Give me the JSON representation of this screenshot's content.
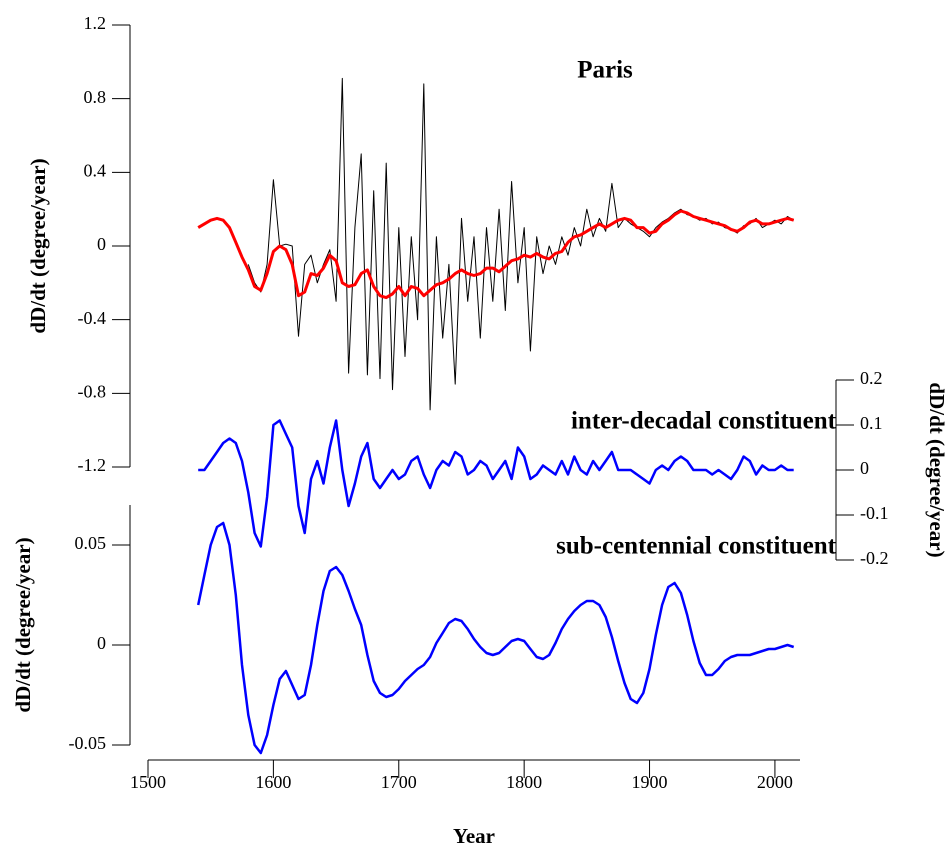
{
  "chart_data": [
    {
      "type": "line",
      "title": "Paris",
      "ylabel": "dD/dt (degree/year)",
      "xlim": [
        1500,
        2020
      ],
      "ylim": [
        -1.2,
        1.2
      ],
      "yticks": [
        -1.2,
        -0.8,
        -0.4,
        0,
        0.4,
        0.8,
        1.2
      ],
      "x": [
        1540,
        1545,
        1550,
        1555,
        1560,
        1565,
        1570,
        1575,
        1580,
        1585,
        1590,
        1595,
        1600,
        1605,
        1610,
        1615,
        1620,
        1625,
        1630,
        1635,
        1640,
        1645,
        1650,
        1655,
        1660,
        1665,
        1670,
        1675,
        1680,
        1685,
        1690,
        1695,
        1700,
        1705,
        1710,
        1715,
        1720,
        1725,
        1730,
        1735,
        1740,
        1745,
        1750,
        1755,
        1760,
        1765,
        1770,
        1775,
        1780,
        1785,
        1790,
        1795,
        1800,
        1805,
        1810,
        1815,
        1820,
        1825,
        1830,
        1835,
        1840,
        1845,
        1850,
        1855,
        1860,
        1865,
        1870,
        1875,
        1880,
        1885,
        1890,
        1895,
        1900,
        1905,
        1910,
        1915,
        1920,
        1925,
        1930,
        1935,
        1940,
        1945,
        1950,
        1955,
        1960,
        1965,
        1970,
        1975,
        1980,
        1985,
        1990,
        1995,
        2000,
        2005,
        2010,
        2015
      ],
      "series": [
        {
          "color": "#000000",
          "values": [
            null,
            null,
            null,
            null,
            null,
            null,
            null,
            null,
            -0.1,
            -0.2,
            -0.25,
            -0.1,
            0.36,
            0.0,
            0.01,
            0.0,
            -0.49,
            -0.1,
            -0.05,
            -0.2,
            -0.1,
            -0.02,
            -0.3,
            0.91,
            -0.69,
            0.1,
            0.5,
            -0.7,
            0.3,
            -0.72,
            0.45,
            -0.78,
            0.1,
            -0.6,
            0.05,
            -0.4,
            0.88,
            -0.89,
            0.05,
            -0.5,
            -0.1,
            -0.75,
            0.15,
            -0.3,
            0.05,
            -0.5,
            0.1,
            -0.3,
            0.2,
            -0.35,
            0.35,
            -0.2,
            0.1,
            -0.57,
            0.05,
            -0.15,
            0.0,
            -0.1,
            0.05,
            -0.05,
            0.1,
            0.0,
            0.2,
            0.05,
            0.15,
            0.08,
            0.34,
            0.1,
            0.15,
            0.12,
            0.1,
            0.08,
            0.05,
            0.1,
            0.13,
            0.15,
            0.18,
            0.2,
            0.17,
            0.16,
            0.14,
            0.15,
            0.12,
            0.13,
            0.1,
            0.09,
            0.07,
            0.11,
            0.12,
            0.15,
            0.1,
            0.12,
            0.14,
            0.12,
            0.16,
            0.14
          ]
        },
        {
          "color": "#ff0000",
          "values": [
            0.1,
            0.12,
            0.14,
            0.15,
            0.14,
            0.1,
            0.02,
            -0.06,
            -0.13,
            -0.22,
            -0.24,
            -0.15,
            -0.03,
            0,
            -0.02,
            -0.1,
            -0.27,
            -0.25,
            -0.15,
            -0.16,
            -0.12,
            -0.05,
            -0.08,
            -0.2,
            -0.22,
            -0.21,
            -0.15,
            -0.13,
            -0.22,
            -0.27,
            -0.28,
            -0.26,
            -0.22,
            -0.27,
            -0.22,
            -0.23,
            -0.27,
            -0.24,
            -0.21,
            -0.2,
            -0.18,
            -0.15,
            -0.13,
            -0.15,
            -0.16,
            -0.15,
            -0.12,
            -0.12,
            -0.14,
            -0.11,
            -0.08,
            -0.07,
            -0.05,
            -0.06,
            -0.04,
            -0.06,
            -0.07,
            -0.04,
            -0.03,
            0.02,
            0.05,
            0.06,
            0.08,
            0.1,
            0.12,
            0.1,
            0.12,
            0.14,
            0.15,
            0.14,
            0.1,
            0.1,
            0.07,
            0.08,
            0.12,
            0.14,
            0.17,
            0.19,
            0.18,
            0.16,
            0.15,
            0.14,
            0.13,
            0.12,
            0.11,
            0.09,
            0.08,
            0.1,
            0.13,
            0.14,
            0.12,
            0.12,
            0.13,
            0.14,
            0.15,
            0.14
          ]
        }
      ]
    },
    {
      "type": "line",
      "title": "inter-decadal constituent",
      "ylabel": "dD/dt (degree/year)",
      "xlim": [
        1500,
        2020
      ],
      "ylim": [
        -0.2,
        0.2
      ],
      "yticks": [
        -0.2,
        -0.1,
        0,
        0.1,
        0.2
      ],
      "x": [
        1540,
        1545,
        1550,
        1555,
        1560,
        1565,
        1570,
        1575,
        1580,
        1585,
        1590,
        1595,
        1600,
        1605,
        1610,
        1615,
        1620,
        1625,
        1630,
        1635,
        1640,
        1645,
        1650,
        1655,
        1660,
        1665,
        1670,
        1675,
        1680,
        1685,
        1690,
        1695,
        1700,
        1705,
        1710,
        1715,
        1720,
        1725,
        1730,
        1735,
        1740,
        1745,
        1750,
        1755,
        1760,
        1765,
        1770,
        1775,
        1780,
        1785,
        1790,
        1795,
        1800,
        1805,
        1810,
        1815,
        1820,
        1825,
        1830,
        1835,
        1840,
        1845,
        1850,
        1855,
        1860,
        1865,
        1870,
        1875,
        1880,
        1885,
        1890,
        1895,
        1900,
        1905,
        1910,
        1915,
        1920,
        1925,
        1930,
        1935,
        1940,
        1945,
        1950,
        1955,
        1960,
        1965,
        1970,
        1975,
        1980,
        1985,
        1990,
        1995,
        2000,
        2005,
        2010,
        2015
      ],
      "series": [
        {
          "color": "#0000ff",
          "values": [
            0,
            0,
            0.02,
            0.04,
            0.06,
            0.07,
            0.06,
            0.02,
            -0.05,
            -0.14,
            -0.17,
            -0.06,
            0.1,
            0.11,
            0.08,
            0.05,
            -0.08,
            -0.14,
            -0.02,
            0.02,
            -0.03,
            0.05,
            0.11,
            0.0,
            -0.08,
            -0.03,
            0.03,
            0.06,
            -0.02,
            -0.04,
            -0.02,
            0.0,
            -0.02,
            -0.01,
            0.02,
            0.03,
            -0.01,
            -0.04,
            0.0,
            0.02,
            0.01,
            0.04,
            0.03,
            -0.01,
            0.0,
            0.02,
            0.01,
            -0.02,
            0.0,
            0.02,
            -0.02,
            0.05,
            0.03,
            -0.02,
            -0.01,
            0.01,
            0.0,
            -0.01,
            0.02,
            -0.01,
            0.03,
            0.0,
            -0.01,
            0.02,
            0.0,
            0.02,
            0.04,
            0.0,
            0.0,
            0.0,
            -0.01,
            -0.02,
            -0.03,
            0.0,
            0.01,
            0.0,
            0.02,
            0.03,
            0.02,
            0.0,
            0.0,
            0.0,
            -0.01,
            0.0,
            -0.01,
            -0.02,
            0.0,
            0.03,
            0.02,
            -0.01,
            0.01,
            0.0,
            0.0,
            0.01,
            0.0,
            0.0
          ]
        }
      ]
    },
    {
      "type": "line",
      "title": "sub-centennial constituent",
      "ylabel": "dD/dt (degree/year)",
      "xlabel": "Year",
      "xlim": [
        1500,
        2020
      ],
      "xticks": [
        1500,
        1600,
        1700,
        1800,
        1900,
        2000
      ],
      "ylim": [
        -0.05,
        0.07
      ],
      "yticks": [
        -0.05,
        0,
        0.05
      ],
      "x": [
        1540,
        1545,
        1550,
        1555,
        1560,
        1565,
        1570,
        1575,
        1580,
        1585,
        1590,
        1595,
        1600,
        1605,
        1610,
        1615,
        1620,
        1625,
        1630,
        1635,
        1640,
        1645,
        1650,
        1655,
        1660,
        1665,
        1670,
        1675,
        1680,
        1685,
        1690,
        1695,
        1700,
        1705,
        1710,
        1715,
        1720,
        1725,
        1730,
        1735,
        1740,
        1745,
        1750,
        1755,
        1760,
        1765,
        1770,
        1775,
        1780,
        1785,
        1790,
        1795,
        1800,
        1805,
        1810,
        1815,
        1820,
        1825,
        1830,
        1835,
        1840,
        1845,
        1850,
        1855,
        1860,
        1865,
        1870,
        1875,
        1880,
        1885,
        1890,
        1895,
        1900,
        1905,
        1910,
        1915,
        1920,
        1925,
        1930,
        1935,
        1940,
        1945,
        1950,
        1955,
        1960,
        1965,
        1970,
        1975,
        1980,
        1985,
        1990,
        1995,
        2000,
        2005,
        2010,
        2015
      ],
      "series": [
        {
          "color": "#0000ff",
          "values": [
            0.02,
            0.035,
            0.05,
            0.059,
            0.061,
            0.05,
            0.025,
            -0.01,
            -0.035,
            -0.05,
            -0.054,
            -0.045,
            -0.03,
            -0.017,
            -0.013,
            -0.02,
            -0.027,
            -0.025,
            -0.01,
            0.01,
            0.027,
            0.037,
            0.039,
            0.035,
            0.027,
            0.018,
            0.01,
            -0.005,
            -0.018,
            -0.024,
            -0.026,
            -0.025,
            -0.022,
            -0.018,
            -0.015,
            -0.012,
            -0.01,
            -0.006,
            0.001,
            0.006,
            0.011,
            0.013,
            0.012,
            0.008,
            0.003,
            -0.001,
            -0.004,
            -0.005,
            -0.004,
            -0.001,
            0.002,
            0.003,
            0.002,
            -0.002,
            -0.006,
            -0.007,
            -0.005,
            0.001,
            0.008,
            0.013,
            0.017,
            0.02,
            0.022,
            0.022,
            0.02,
            0.014,
            0.004,
            -0.008,
            -0.019,
            -0.027,
            -0.029,
            -0.024,
            -0.012,
            0.005,
            0.02,
            0.029,
            0.031,
            0.026,
            0.015,
            0.002,
            -0.009,
            -0.015,
            -0.015,
            -0.012,
            -0.008,
            -0.006,
            -0.005,
            -0.005,
            -0.005,
            -0.004,
            -0.003,
            -0.002,
            -0.002,
            -0.001,
            0.0,
            -0.001
          ]
        }
      ]
    }
  ]
}
